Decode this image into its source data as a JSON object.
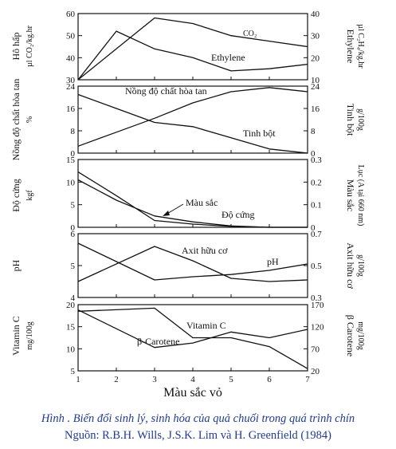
{
  "caption": {
    "title": "Hình  . Biến đổi sinh lý, sinh hóa của quả chuối trong quá trình chín",
    "source": "Nguồn: R.B.H. Wills, J.S.K. Lim và H. Greenfield (1984)"
  },
  "chart_data": [
    {
      "type": "line",
      "xlabel": "Màu sắc vỏ",
      "xticks": [
        "1",
        "2",
        "3",
        "4",
        "5",
        "6",
        "7"
      ],
      "xlim": [
        1,
        7
      ],
      "left_axis": {
        "label": "Hô hấp",
        "unit": "µl CO₂/kg.hr",
        "ylim": [
          30,
          60
        ],
        "ticks": [
          "30",
          "40",
          "50",
          "60"
        ]
      },
      "right_axis": {
        "label": "Ethylene",
        "unit": "µl C₂H₄/kg.hr",
        "ylim": [
          10,
          40
        ],
        "ticks": [
          "10",
          "20",
          "30",
          "40"
        ]
      },
      "series": [
        {
          "name": "CO₂",
          "axis": "left",
          "x": [
            1,
            3,
            4,
            5,
            6,
            7
          ],
          "values": [
            30,
            58,
            55.5,
            50,
            47.5,
            45
          ]
        },
        {
          "name": "Ethylene",
          "axis": "right",
          "x": [
            1,
            2,
            3,
            4,
            5,
            6,
            7
          ],
          "values": [
            10,
            32,
            24,
            20,
            14,
            15,
            17
          ]
        }
      ]
    },
    {
      "type": "line",
      "xlim": [
        1,
        7
      ],
      "left_axis": {
        "label": "Nồng độ chất hòa tan",
        "unit": "%",
        "ylim": [
          0,
          24
        ],
        "ticks": [
          "0",
          "8",
          "16",
          "24"
        ]
      },
      "right_axis": {
        "label": "Tinh bột",
        "unit": "g/100g",
        "ylim": [
          0,
          24
        ],
        "ticks": [
          "0",
          "8",
          "16",
          "24"
        ]
      },
      "series": [
        {
          "name": "Nồng độ chất hòa tan",
          "axis": "left",
          "x": [
            1,
            2,
            3,
            4,
            5,
            6,
            7
          ],
          "values": [
            2.5,
            7.5,
            12.5,
            18,
            22,
            23.5,
            22
          ]
        },
        {
          "name": "Tinh bột",
          "axis": "right",
          "x": [
            1,
            2,
            3,
            4,
            5,
            6,
            7
          ],
          "values": [
            21,
            16,
            11,
            9.5,
            5.5,
            1.5,
            0
          ]
        }
      ]
    },
    {
      "type": "line",
      "xlim": [
        1,
        7
      ],
      "left_axis": {
        "label": "Độ cứng",
        "unit": "kgf",
        "ylim": [
          0,
          15
        ],
        "ticks": [
          "0",
          "5",
          "10",
          "15"
        ]
      },
      "right_axis": {
        "label": "Màu sắc",
        "unit": "Lục (A tại 660 nm)",
        "ylim": [
          0,
          0.3
        ],
        "ticks": [
          "0",
          "0.1",
          "0.2",
          "0.3"
        ]
      },
      "series": [
        {
          "name": "Màu sắc",
          "axis": "right",
          "x": [
            1,
            2,
            3,
            4,
            5,
            6,
            7
          ],
          "values": [
            0.245,
            0.14,
            0.03,
            0.014,
            0.004,
            0,
            0
          ]
        },
        {
          "name": "Độ cứng",
          "axis": "left",
          "x": [
            1,
            2,
            3,
            4,
            5,
            6,
            7
          ],
          "values": [
            10.5,
            6,
            2.5,
            1.2,
            0.3,
            0,
            0
          ]
        }
      ]
    },
    {
      "type": "line",
      "xlim": [
        1,
        7
      ],
      "left_axis": {
        "label": "pH",
        "unit": "",
        "ylim": [
          4,
          6
        ],
        "ticks": [
          "4",
          "5",
          "6"
        ]
      },
      "right_axis": {
        "label": "Axit hữu cơ",
        "unit": "g/100g",
        "ylim": [
          0.3,
          0.7
        ],
        "ticks": [
          "0.3",
          "0.5",
          "0.7"
        ]
      },
      "series": [
        {
          "name": "Axit hữu cơ",
          "axis": "right",
          "x": [
            1,
            3,
            4,
            5,
            6,
            7
          ],
          "values": [
            0.4,
            0.62,
            0.53,
            0.42,
            0.4,
            0.41
          ]
        },
        {
          "name": "pH",
          "axis": "left",
          "x": [
            1,
            3,
            4,
            5,
            6,
            7
          ],
          "values": [
            5.7,
            4.55,
            4.65,
            4.72,
            4.85,
            5.05
          ]
        }
      ]
    },
    {
      "type": "line",
      "xlim": [
        1,
        7
      ],
      "left_axis": {
        "label": "Vitamin C",
        "unit": "mg/100g",
        "ylim": [
          5,
          20
        ],
        "ticks": [
          "5",
          "10",
          "15",
          "20"
        ]
      },
      "right_axis": {
        "label": "β Carotene",
        "unit": "mg/100g",
        "ylim": [
          20,
          170
        ],
        "ticks": [
          "20",
          "70",
          "120",
          "170"
        ]
      },
      "series": [
        {
          "name": "Vitamin C",
          "axis": "left",
          "x": [
            1,
            3,
            4,
            5,
            6,
            7
          ],
          "values": [
            18.5,
            19.2,
            12.5,
            12.5,
            10.5,
            5.5
          ]
        },
        {
          "name": "β-Carotene",
          "axis": "right",
          "x": [
            1,
            3,
            4,
            5,
            6,
            7
          ],
          "values": [
            158,
            73,
            83,
            108,
            95,
            114
          ]
        }
      ]
    }
  ]
}
